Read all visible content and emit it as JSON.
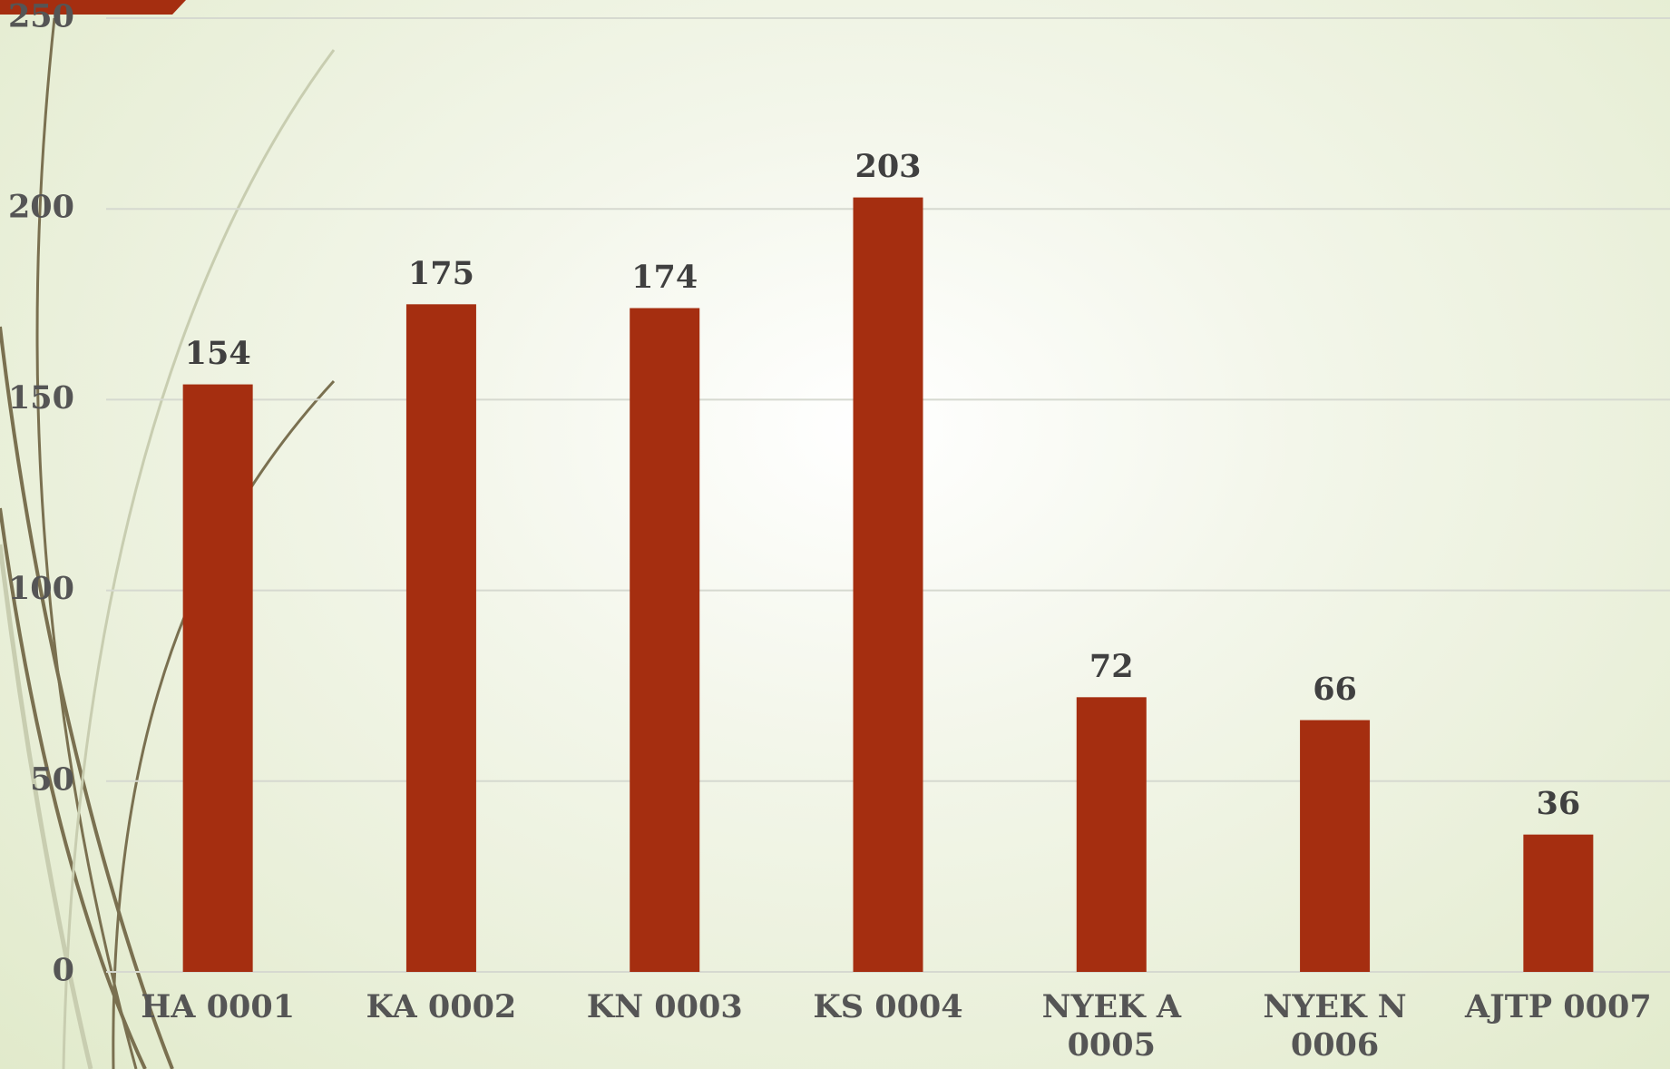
{
  "chart_data": {
    "type": "bar",
    "categories": [
      "HA 0001",
      "KA 0002",
      "KN 0003",
      "KS 0004",
      "NYEK A 0005",
      "NYEK N 0006",
      "AJTP 0007"
    ],
    "values": [
      154,
      175,
      174,
      203,
      72,
      66,
      36
    ],
    "color": "#a52e10",
    "ylim": [
      0,
      250
    ],
    "yticks": [
      0,
      50,
      100,
      150,
      200,
      250
    ],
    "grid": true
  }
}
